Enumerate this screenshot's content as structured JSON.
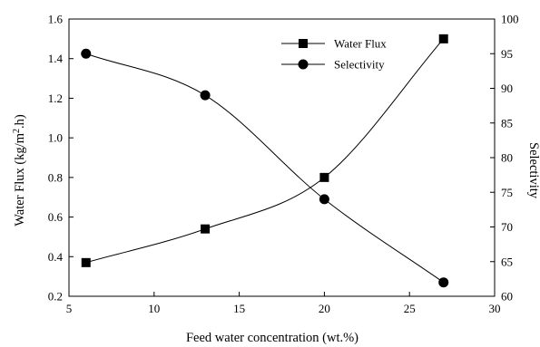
{
  "chart_data": {
    "type": "line",
    "xlabel": "Feed water concentration (wt.%)",
    "xlim": [
      5,
      30
    ],
    "x_ticks": [
      "5",
      "10",
      "15",
      "20",
      "25",
      "30"
    ],
    "y_left": {
      "label_parts": {
        "pre": "Water Flux (kg/m",
        "sup": "2",
        "post": ".h)"
      },
      "lim": [
        0.2,
        1.6
      ],
      "ticks": [
        "0.2",
        "0.4",
        "0.6",
        "0.8",
        "1.0",
        "1.2",
        "1.4",
        "1.6"
      ]
    },
    "y_right": {
      "label": "Selectivity",
      "lim": [
        60,
        100
      ],
      "ticks": [
        "60",
        "65",
        "70",
        "75",
        "80",
        "85",
        "90",
        "95",
        "100"
      ]
    },
    "series": [
      {
        "name": "Water Flux",
        "axis": "left",
        "marker": "square",
        "x": [
          6,
          13,
          20,
          27
        ],
        "values": [
          0.37,
          0.54,
          0.8,
          1.5
        ]
      },
      {
        "name": "Selectivity",
        "axis": "right",
        "marker": "circle",
        "x": [
          6,
          13,
          20,
          27
        ],
        "values": [
          95,
          89,
          74,
          62
        ]
      }
    ],
    "legend_position": "top-right",
    "grid": false
  }
}
